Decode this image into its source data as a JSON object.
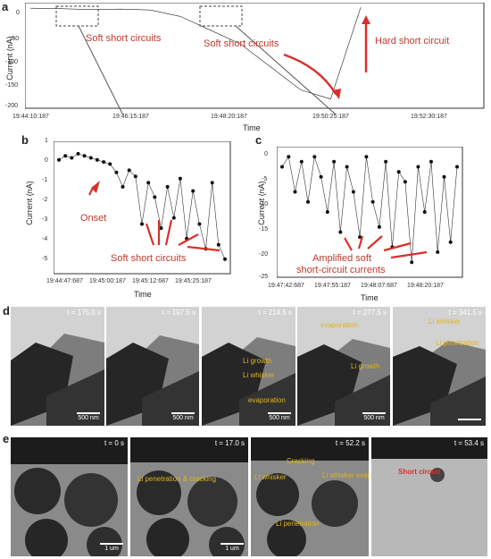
{
  "panels": {
    "a": {
      "label": "a",
      "ylabel": "Current (nA)",
      "xlabel": "Time",
      "yticks": [
        "0",
        "-50",
        "-100",
        "-150",
        "-200"
      ],
      "xticks": [
        "19:44:10:187",
        "19:46:15:187",
        "19:48:20:187",
        "19:50:25:187",
        "19:52:30:187"
      ],
      "annotations": {
        "soft1": "Soft short circuits",
        "soft2": "Soft short circuits",
        "hard": "Hard short circuit"
      }
    },
    "b": {
      "label": "b",
      "ylabel": "Current (nA)",
      "xlabel": "Time",
      "yticks": [
        "1",
        "0",
        "-1",
        "-2",
        "-3",
        "-4",
        "-5"
      ],
      "xticks": [
        "19:44:47:687",
        "19:45:00:187",
        "19:45:12:687",
        "19:45:25:187"
      ],
      "annotations": {
        "onset": "Onset",
        "soft": "Soft short circuits"
      }
    },
    "c": {
      "label": "c",
      "ylabel": "Current (nA)",
      "xlabel": "Time",
      "yticks": [
        "0",
        "-5",
        "-10",
        "-15",
        "-20",
        "-25"
      ],
      "xticks": [
        "19:47:42:687",
        "19:47:55:187",
        "19:48:07:687",
        "19:48:20:187"
      ],
      "annotations": {
        "amp1": "Amplified soft",
        "amp2": "short-circuit currents"
      }
    },
    "d": {
      "label": "d",
      "frames": [
        {
          "t": "t = 175.0 s",
          "scale": "500 nm",
          "labels": []
        },
        {
          "t": "t = 197.5 s",
          "scale": "500 nm",
          "labels": []
        },
        {
          "t": "t = 214.5 s",
          "scale": "500 nm",
          "labels": [
            "Li growth",
            "Li whisker",
            "evaporation"
          ]
        },
        {
          "t": "t = 277.5 s",
          "scale": "500 nm",
          "labels": [
            "Li growth",
            "evaporation"
          ]
        },
        {
          "t": "t = 341.5 s",
          "scale": "",
          "labels": [
            "Li whisker",
            "Li penetration"
          ]
        }
      ]
    },
    "e": {
      "label": "e",
      "frames": [
        {
          "t": "t = 0 s",
          "scale": "1 um",
          "labels": []
        },
        {
          "t": "t = 17.0 s",
          "scale": "1 um",
          "labels": [
            "Li penetration & cracking"
          ]
        },
        {
          "t": "t = 52.2 s",
          "scale": "",
          "labels": [
            "Cracking",
            "Li whisker",
            "Li penetration",
            "Li whisker evaporation"
          ]
        },
        {
          "t": "t = 53.4 s",
          "scale": "",
          "labels": [
            "Short circuit"
          ]
        }
      ]
    }
  },
  "chart_data": [
    {
      "type": "line",
      "panel": "a",
      "xlabel": "Time",
      "ylabel": "Current (nA)",
      "ylim": [
        -220,
        10
      ],
      "x": [
        "19:44:10:187",
        "19:45:00",
        "19:46:00",
        "19:47:00",
        "19:48:00",
        "19:48:40",
        "19:49:10",
        "19:49:40",
        "19:50:00",
        "19:50:20",
        "19:50:35",
        "19:50:45"
      ],
      "y": [
        -2,
        -3,
        -5,
        -4,
        -6,
        -20,
        -50,
        -80,
        -130,
        -180,
        -200,
        0
      ]
    },
    {
      "type": "scatter",
      "panel": "b",
      "xlabel": "Time",
      "ylabel": "Current (nA)",
      "ylim": [
        -5.2,
        1.2
      ],
      "y": [
        0.3,
        0.5,
        0.4,
        0.6,
        0.5,
        0.4,
        0.3,
        0.2,
        0.1,
        -0.3,
        -1.0,
        -0.2,
        -0.5,
        -2.8,
        -0.8,
        -1.5,
        -3.0,
        -1.0,
        -2.5,
        -0.6,
        -3.5,
        -1.2,
        -2.8,
        -4.0,
        -0.8,
        -3.8,
        -4.5
      ]
    },
    {
      "type": "scatter",
      "panel": "c",
      "xlabel": "Time",
      "ylabel": "Current (nA)",
      "ylim": [
        -25,
        1
      ],
      "y": [
        -3,
        -1,
        -8,
        -2,
        -10,
        -1,
        -5,
        -12,
        -2,
        -16,
        -3,
        -8,
        -17,
        -1,
        -10,
        -15,
        -2,
        -19,
        -4,
        -6,
        -22,
        -3,
        -12,
        -2,
        -20,
        -5,
        -18,
        -3
      ]
    }
  ]
}
